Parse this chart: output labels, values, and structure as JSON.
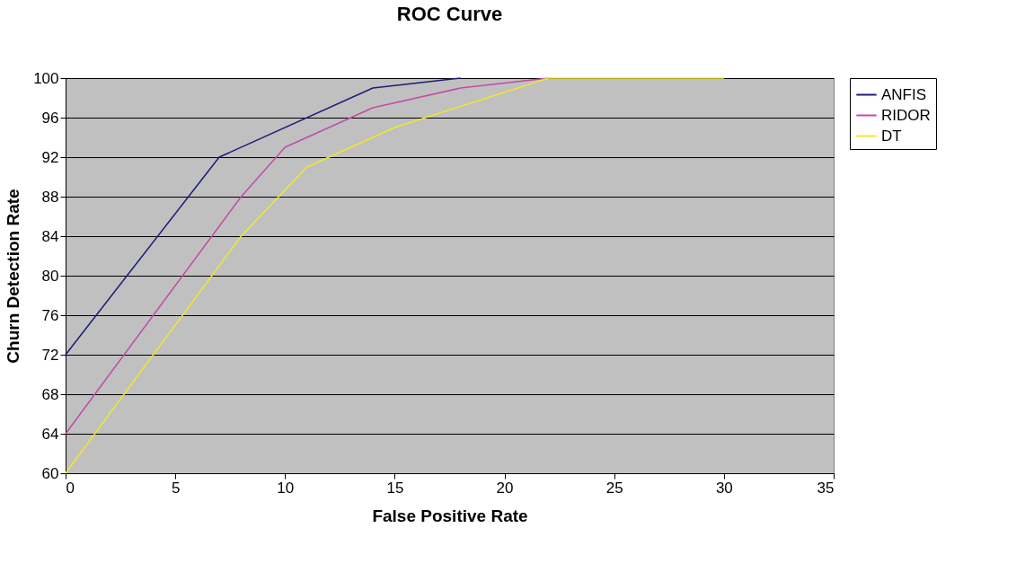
{
  "chart_data": {
    "type": "line",
    "title": "ROC Curve",
    "xlabel": "False Positive Rate",
    "ylabel": "Churn Detection Rate",
    "xlim": [
      0,
      35
    ],
    "xticks": [
      0,
      5,
      10,
      15,
      20,
      25,
      30,
      35
    ],
    "ylim": [
      60,
      100
    ],
    "yticks": [
      60,
      64,
      68,
      72,
      76,
      80,
      84,
      88,
      92,
      96,
      100
    ],
    "grid": "y",
    "legend": "right",
    "marker": "none",
    "line_style": "solid",
    "series": [
      {
        "name": "ANFIS",
        "color": "#1c1c78",
        "x": [
          0,
          7,
          14,
          18
        ],
        "values": [
          72,
          92,
          99,
          100
        ]
      },
      {
        "name": "RIDOR",
        "color": "#c04ca8",
        "x": [
          0,
          8,
          10,
          14,
          18,
          22
        ],
        "values": [
          64,
          88,
          93,
          97,
          99,
          100
        ]
      },
      {
        "name": "DT",
        "color": "#f0e82a",
        "x": [
          0,
          8,
          11,
          15,
          22,
          30
        ],
        "values": [
          60,
          84,
          91,
          95,
          100,
          100
        ]
      }
    ]
  }
}
